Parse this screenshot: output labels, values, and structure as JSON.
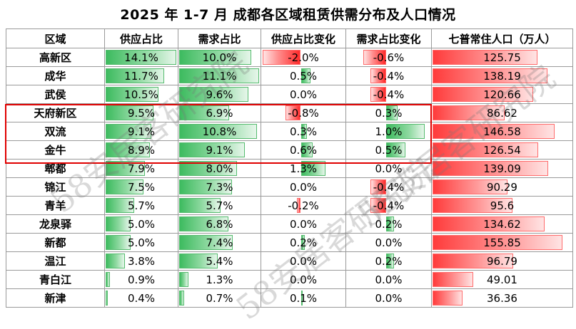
{
  "title": "2025 年 1-7 月  成都各区域租赁供需分布及人口情况",
  "headers": [
    "区域",
    "供应占比",
    "需求占比",
    "供应占比变化",
    "需求占比变化",
    "七普常住人口（万人）"
  ],
  "rows": [
    {
      "region": "高新区",
      "supply": "14.1%",
      "demand": "10.0%",
      "supply_change": "-2.0%",
      "demand_change": "-0.6%",
      "population": "125.75"
    },
    {
      "region": "成华",
      "supply": "11.7%",
      "demand": "11.1%",
      "supply_change": "0.5%",
      "demand_change": "-0.4%",
      "population": "138.19"
    },
    {
      "region": "武侯",
      "supply": "10.5%",
      "demand": "9.6%",
      "supply_change": "0.0%",
      "demand_change": "-0.4%",
      "population": "120.66"
    },
    {
      "region": "天府新区",
      "supply": "9.5%",
      "demand": "6.9%",
      "supply_change": "-0.8%",
      "demand_change": "0.3%",
      "population": "86.62"
    },
    {
      "region": "双流",
      "supply": "9.1%",
      "demand": "10.8%",
      "supply_change": "0.3%",
      "demand_change": "1.0%",
      "population": "146.58"
    },
    {
      "region": "金牛",
      "supply": "8.9%",
      "demand": "9.1%",
      "supply_change": "0.6%",
      "demand_change": "0.5%",
      "population": "126.54"
    },
    {
      "region": "郫都",
      "supply": "7.9%",
      "demand": "8.0%",
      "supply_change": "1.3%",
      "demand_change": "0.0%",
      "population": "139.09"
    },
    {
      "region": "锦江",
      "supply": "7.5%",
      "demand": "7.3%",
      "supply_change": "0.0%",
      "demand_change": "-0.4%",
      "population": "90.29"
    },
    {
      "region": "青羊",
      "supply": "5.7%",
      "demand": "5.7%",
      "supply_change": "-0.2%",
      "demand_change": "-0.4%",
      "population": "95.6"
    },
    {
      "region": "龙泉驿",
      "supply": "5.0%",
      "demand": "6.8%",
      "supply_change": "0.0%",
      "demand_change": "0.2%",
      "population": "134.62"
    },
    {
      "region": "新都",
      "supply": "5.0%",
      "demand": "7.4%",
      "supply_change": "0.2%",
      "demand_change": "0.0%",
      "population": "155.85"
    },
    {
      "region": "温江",
      "supply": "3.8%",
      "demand": "5.4%",
      "supply_change": "0.0%",
      "demand_change": "0.2%",
      "population": "96.79"
    },
    {
      "region": "青白江",
      "supply": "0.9%",
      "demand": "1.3%",
      "supply_change": "0.0%",
      "demand_change": "0.0%",
      "population": "49.01"
    },
    {
      "region": "新津",
      "supply": "0.4%",
      "demand": "0.7%",
      "supply_change": "0.1%",
      "demand_change": "0.0%",
      "population": "36.36"
    }
  ],
  "colors": {
    "positive_bar": "#3dbb5f",
    "negative_bar": "#ff3b3b",
    "highlight_border": "#e00000"
  },
  "watermark": "58安居客研究院"
}
